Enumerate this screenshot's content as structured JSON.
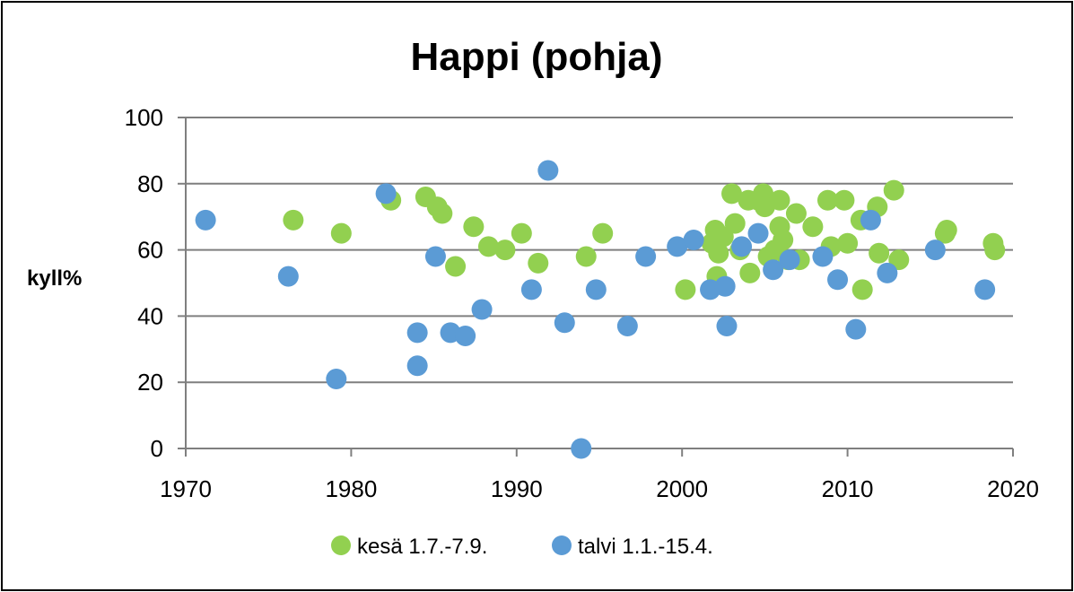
{
  "chart_data": {
    "type": "scatter",
    "title": "Happi (pohja)",
    "xlabel": "",
    "ylabel": "kyll%",
    "xlim": [
      1970,
      2020
    ],
    "ylim": [
      0,
      100
    ],
    "xticks": [
      1970,
      1980,
      1990,
      2000,
      2010,
      2020
    ],
    "yticks": [
      0,
      20,
      40,
      60,
      80,
      100
    ],
    "grid": "horizontal",
    "legend_position": "bottom",
    "series": [
      {
        "name": "kesä 1.7.-7.9.",
        "color": "#92d050",
        "points": [
          [
            1976.5,
            69
          ],
          [
            1979.4,
            65
          ],
          [
            1982.4,
            75
          ],
          [
            1984.5,
            76
          ],
          [
            1985.2,
            73
          ],
          [
            1985.5,
            71
          ],
          [
            1986.3,
            55
          ],
          [
            1987.4,
            67
          ],
          [
            1988.3,
            61
          ],
          [
            1989.3,
            60
          ],
          [
            1990.3,
            65
          ],
          [
            1991.3,
            56
          ],
          [
            1994.2,
            58
          ],
          [
            1995.2,
            65
          ],
          [
            2000.2,
            48
          ],
          [
            2001.8,
            62
          ],
          [
            2002.0,
            66
          ],
          [
            2002.2,
            59
          ],
          [
            2002.1,
            52
          ],
          [
            2002.5,
            64
          ],
          [
            2003.0,
            77
          ],
          [
            2003.2,
            68
          ],
          [
            2003.5,
            60
          ],
          [
            2004.0,
            75
          ],
          [
            2004.1,
            53
          ],
          [
            2004.6,
            75
          ],
          [
            2004.9,
            77
          ],
          [
            2005.0,
            73
          ],
          [
            2005.2,
            58
          ],
          [
            2005.6,
            60
          ],
          [
            2005.9,
            75
          ],
          [
            2005.9,
            67
          ],
          [
            2006.1,
            63
          ],
          [
            2006.4,
            57
          ],
          [
            2006.9,
            71
          ],
          [
            2007.1,
            57
          ],
          [
            2007.9,
            67
          ],
          [
            2008.8,
            75
          ],
          [
            2009.0,
            61
          ],
          [
            2009.8,
            75
          ],
          [
            2010.0,
            62
          ],
          [
            2010.8,
            69
          ],
          [
            2010.9,
            48
          ],
          [
            2011.8,
            73
          ],
          [
            2011.9,
            59
          ],
          [
            2012.8,
            78
          ],
          [
            2013.1,
            57
          ],
          [
            2015.9,
            65
          ],
          [
            2016.0,
            66
          ],
          [
            2018.8,
            62
          ],
          [
            2018.9,
            60
          ]
        ]
      },
      {
        "name": "talvi 1.1.-15.4.",
        "color": "#5b9bd5",
        "points": [
          [
            1971.2,
            69
          ],
          [
            1976.2,
            52
          ],
          [
            1979.1,
            21
          ],
          [
            1982.1,
            77
          ],
          [
            1984.0,
            35
          ],
          [
            1984.0,
            25
          ],
          [
            1985.1,
            58
          ],
          [
            1986.0,
            35
          ],
          [
            1986.9,
            34
          ],
          [
            1987.9,
            42
          ],
          [
            1990.9,
            48
          ],
          [
            1991.9,
            84
          ],
          [
            1992.9,
            38
          ],
          [
            1993.9,
            0
          ],
          [
            1994.8,
            48
          ],
          [
            1996.7,
            37
          ],
          [
            1997.8,
            58
          ],
          [
            1999.7,
            61
          ],
          [
            2000.7,
            63
          ],
          [
            2001.7,
            48
          ],
          [
            2002.6,
            49
          ],
          [
            2002.7,
            37
          ],
          [
            2003.6,
            61
          ],
          [
            2004.6,
            65
          ],
          [
            2005.5,
            54
          ],
          [
            2006.5,
            57
          ],
          [
            2008.5,
            58
          ],
          [
            2009.4,
            51
          ],
          [
            2010.5,
            36
          ],
          [
            2011.4,
            69
          ],
          [
            2012.4,
            53
          ],
          [
            2015.3,
            60
          ],
          [
            2018.3,
            48
          ]
        ]
      }
    ]
  }
}
